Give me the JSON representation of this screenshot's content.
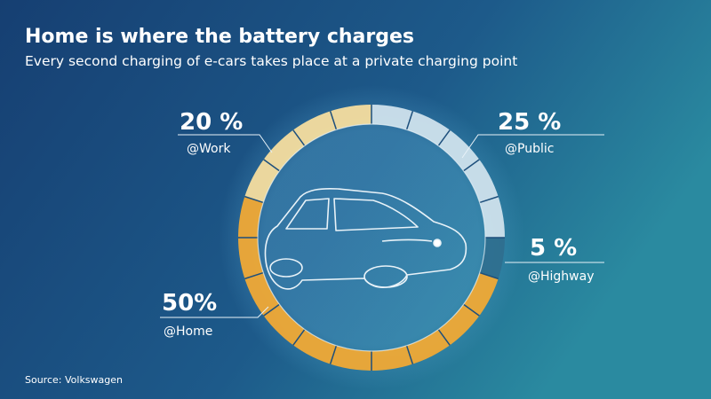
{
  "chart_data": {
    "type": "donut",
    "title": "Home is where the battery charges",
    "subtitle": "Every second charging of e-cars takes place at a private charging point",
    "source": "Source: Volkswagen",
    "categories": [
      "@Public",
      "@Highway",
      "@Home",
      "@Work"
    ],
    "values": [
      25,
      5,
      50,
      20
    ],
    "value_labels": [
      "25 %",
      "5 %",
      "50%",
      "20 %"
    ],
    "colors": [
      "#cfe2ec",
      "#2f6f8f",
      "#f0a935",
      "#f5dd9e"
    ]
  }
}
